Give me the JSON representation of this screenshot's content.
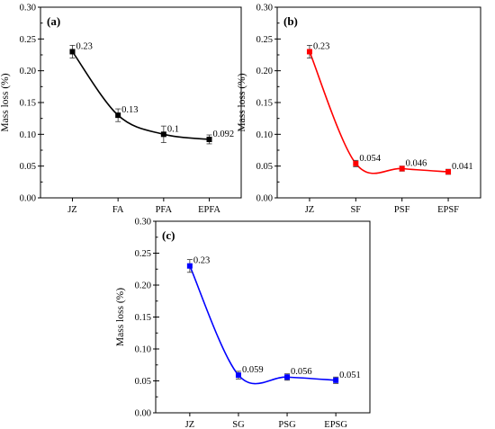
{
  "chart_data": [
    {
      "id": "a",
      "type": "line",
      "panel_label": "(a)",
      "ylabel": "Mass loss (%)",
      "categories": [
        "JZ",
        "FA",
        "PFA",
        "EPFA"
      ],
      "values": [
        0.23,
        0.13,
        0.1,
        0.092
      ],
      "errors": [
        0.01,
        0.01,
        0.013,
        0.007
      ],
      "data_labels": [
        "0.23",
        "0.13",
        "0.1",
        "0.092"
      ],
      "ylim": [
        0,
        0.3
      ],
      "yticks": [
        "0.00",
        "0.05",
        "0.10",
        "0.15",
        "0.20",
        "0.25",
        "0.30"
      ],
      "color": "#000000"
    },
    {
      "id": "b",
      "type": "line",
      "panel_label": "(b)",
      "ylabel": "Mass loss (%)",
      "categories": [
        "JZ",
        "SF",
        "PSF",
        "EPSF"
      ],
      "values": [
        0.23,
        0.054,
        0.046,
        0.041
      ],
      "errors": [
        0.01,
        0.005,
        0.004,
        0.004
      ],
      "data_labels": [
        "0.23",
        "0.054",
        "0.046",
        "0.041"
      ],
      "ylim": [
        0,
        0.3
      ],
      "yticks": [
        "0.00",
        "0.05",
        "0.10",
        "0.15",
        "0.20",
        "0.25",
        "0.30"
      ],
      "color": "#ff0000"
    },
    {
      "id": "c",
      "type": "line",
      "panel_label": "(c)",
      "ylabel": "Mass loss (%)",
      "categories": [
        "JZ",
        "SG",
        "PSG",
        "EPSG"
      ],
      "values": [
        0.23,
        0.059,
        0.056,
        0.051
      ],
      "errors": [
        0.01,
        0.006,
        0.005,
        0.005
      ],
      "data_labels": [
        "0.23",
        "0.059",
        "0.056",
        "0.051"
      ],
      "ylim": [
        0,
        0.3
      ],
      "yticks": [
        "0.00",
        "0.05",
        "0.10",
        "0.15",
        "0.20",
        "0.25",
        "0.30"
      ],
      "color": "#0000ff"
    }
  ]
}
